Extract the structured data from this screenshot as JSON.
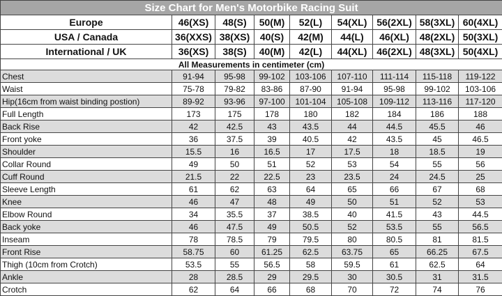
{
  "title": "Size Chart for Men's Motorbike Racing Suit",
  "header_rows": [
    {
      "label": "Europe",
      "sizes": [
        "46(XS)",
        "48(S)",
        "50(M)",
        "52(L)",
        "54(XL)",
        "56(2XL)",
        "58(3XL)",
        "60(4XL)"
      ]
    },
    {
      "label": "USA / Canada",
      "sizes": [
        "36(XXS)",
        "38(XS)",
        "40(S)",
        "42(M)",
        "44(L)",
        "46(XL)",
        "48(2XL)",
        "50(3XL)"
      ]
    },
    {
      "label": "International / UK",
      "sizes": [
        "36(XS)",
        "38(S)",
        "40(M)",
        "42(L)",
        "44(XL)",
        "46(2XL)",
        "48(3XL)",
        "50(4XL)"
      ]
    }
  ],
  "note": "All Measurements in centimeter (cm)",
  "rows": [
    {
      "label": "Chest",
      "values": [
        "91-94",
        "95-98",
        "99-102",
        "103-106",
        "107-110",
        "111-114",
        "115-118",
        "119-122"
      ]
    },
    {
      "label": "Waist",
      "values": [
        "75-78",
        "79-82",
        "83-86",
        "87-90",
        "91-94",
        "95-98",
        "99-102",
        "103-106"
      ]
    },
    {
      "label": "Hip(16cm from waist binding postion)",
      "values": [
        "89-92",
        "93-96",
        "97-100",
        "101-104",
        "105-108",
        "109-112",
        "113-116",
        "117-120"
      ]
    },
    {
      "label": "Full Length",
      "values": [
        "173",
        "175",
        "178",
        "180",
        "182",
        "184",
        "186",
        "188"
      ]
    },
    {
      "label": "Back Rise",
      "values": [
        "42",
        "42.5",
        "43",
        "43.5",
        "44",
        "44.5",
        "45.5",
        "46"
      ]
    },
    {
      "label": "Front yoke",
      "values": [
        "36",
        "37.5",
        "39",
        "40.5",
        "42",
        "43.5",
        "45",
        "46.5"
      ]
    },
    {
      "label": "Shoulder",
      "values": [
        "15.5",
        "16",
        "16.5",
        "17",
        "17.5",
        "18",
        "18.5",
        "19"
      ]
    },
    {
      "label": "Collar Round",
      "values": [
        "49",
        "50",
        "51",
        "52",
        "53",
        "54",
        "55",
        "56"
      ]
    },
    {
      "label": "Cuff Round",
      "values": [
        "21.5",
        "22",
        "22.5",
        "23",
        "23.5",
        "24",
        "24.5",
        "25"
      ]
    },
    {
      "label": "Sleeve Length",
      "values": [
        "61",
        "62",
        "63",
        "64",
        "65",
        "66",
        "67",
        "68"
      ]
    },
    {
      "label": "Knee",
      "values": [
        "46",
        "47",
        "48",
        "49",
        "50",
        "51",
        "52",
        "53"
      ]
    },
    {
      "label": "Elbow Round",
      "values": [
        "34",
        "35.5",
        "37",
        "38.5",
        "40",
        "41.5",
        "43",
        "44.5"
      ]
    },
    {
      "label": "Back yoke",
      "values": [
        "46",
        "47.5",
        "49",
        "50.5",
        "52",
        "53.5",
        "55",
        "56.5"
      ]
    },
    {
      "label": "Inseam",
      "values": [
        "78",
        "78.5",
        "79",
        "79.5",
        "80",
        "80.5",
        "81",
        "81.5"
      ]
    },
    {
      "label": "Front Rise",
      "values": [
        "58.75",
        "60",
        "61.25",
        "62.5",
        "63.75",
        "65",
        "66.25",
        "67.5"
      ]
    },
    {
      "label": "Thigh (10cm from Crotch)",
      "values": [
        "53.5",
        "55",
        "56.5",
        "58",
        "59.5",
        "61",
        "62.5",
        "64"
      ]
    },
    {
      "label": "Ankle",
      "values": [
        "28",
        "28.5",
        "29",
        "29.5",
        "30",
        "30.5",
        "31",
        "31.5"
      ]
    },
    {
      "label": "Crotch",
      "values": [
        "62",
        "64",
        "66",
        "68",
        "70",
        "72",
        "74",
        "76"
      ]
    }
  ],
  "colors": {
    "title_bg": "#a6a6a6",
    "shade": "#dcdcdc",
    "border": "#444444"
  }
}
